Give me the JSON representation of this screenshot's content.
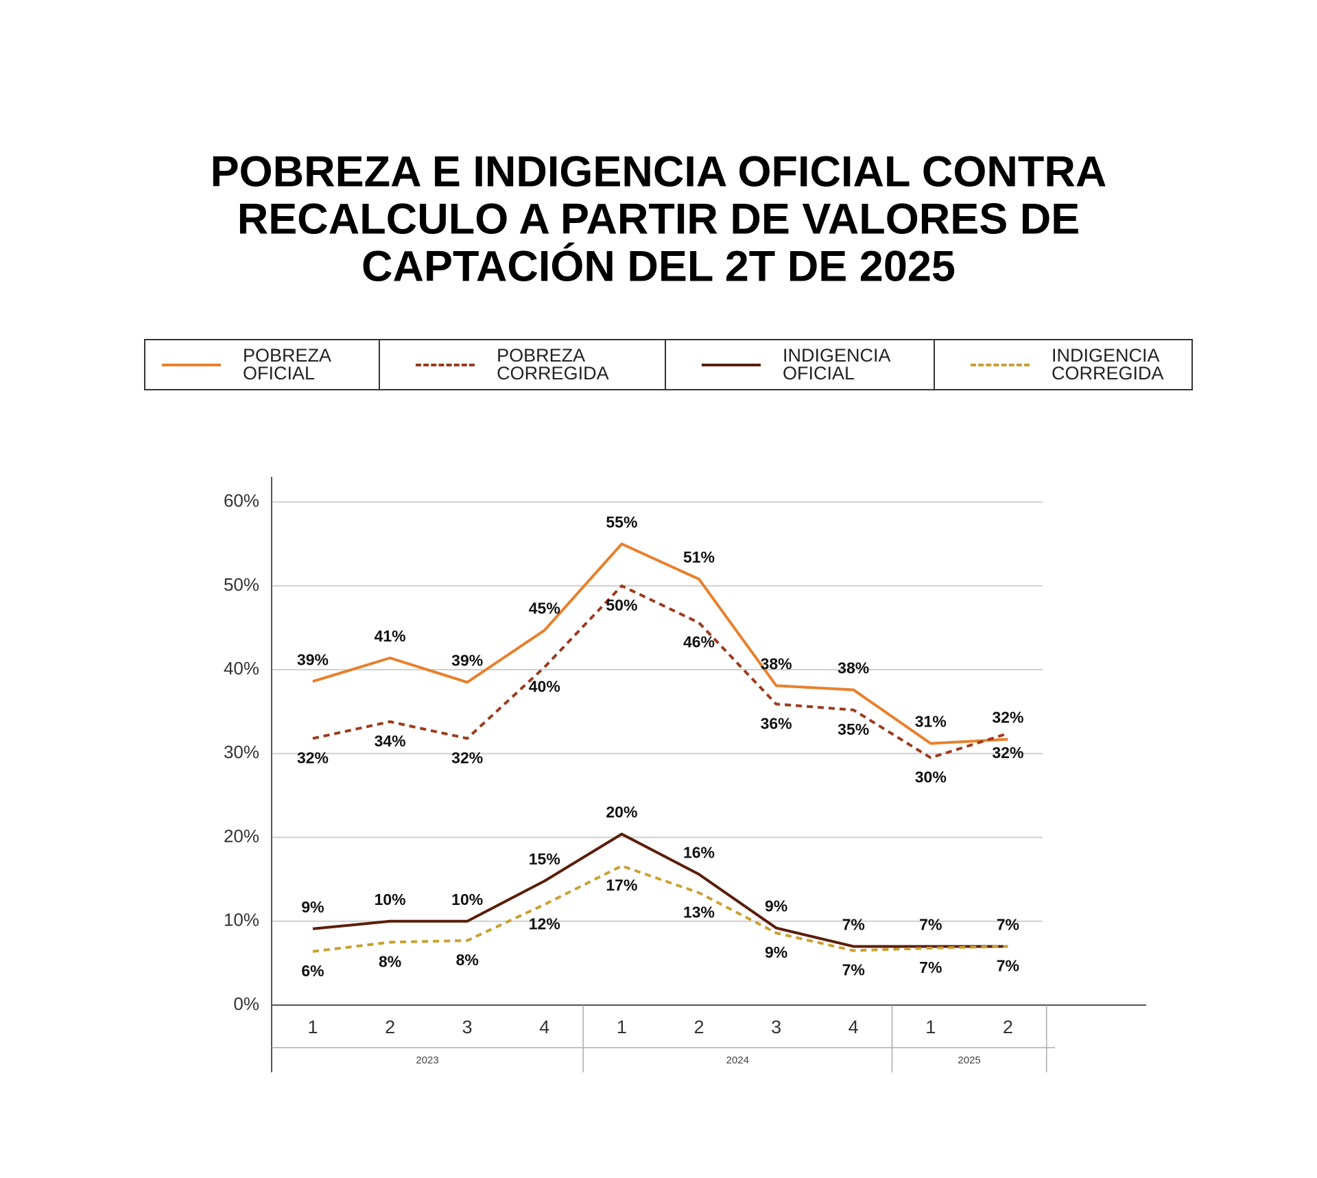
{
  "chart_data": {
    "type": "line",
    "title": [
      "POBREZA E INDIGENCIA OFICIAL CONTRA",
      "RECALCULO A PARTIR DE VALORES DE",
      "CAPTACIÓN DEL 2T DE 2025"
    ],
    "categories": [
      "1",
      "2",
      "3",
      "4",
      "1",
      "2",
      "3",
      "4",
      "1",
      "2"
    ],
    "years": [
      "2023",
      "2024",
      "2025"
    ],
    "ylim": [
      0,
      63
    ],
    "yticks": [
      {
        "value": 0,
        "label": "0%"
      },
      {
        "value": 10,
        "label": "10%"
      },
      {
        "value": 20,
        "label": "20%"
      },
      {
        "value": 30,
        "label": "30%"
      },
      {
        "value": 40,
        "label": "40%"
      },
      {
        "value": 50,
        "label": "50%"
      },
      {
        "value": 60,
        "label": "60%"
      }
    ],
    "grid": true,
    "series": [
      {
        "name": "POBREZA OFICIAL",
        "color": "#e8802c",
        "dashed": false,
        "values": [
          38.6,
          41.4,
          38.5,
          44.7,
          55.0,
          50.8,
          38.1,
          37.6,
          31.2,
          31.7
        ],
        "value_labels": [
          "39%",
          "41%",
          "39%",
          "45%",
          "55%",
          "51%",
          "38%",
          "38%",
          "31%",
          "32%"
        ]
      },
      {
        "name": "POBREZA CORREGIDA",
        "color": "#9c3a1c",
        "dashed": true,
        "values": [
          31.8,
          33.8,
          31.8,
          40.3,
          50.0,
          45.6,
          35.9,
          35.2,
          29.5,
          32.4
        ],
        "value_labels": [
          "32%",
          "34%",
          "32%",
          "40%",
          "50%",
          "46%",
          "36%",
          "35%",
          "30%",
          "32%"
        ]
      },
      {
        "name": "INDIGENCIA OFICIAL",
        "color": "#5a1e0a",
        "dashed": false,
        "values": [
          9.1,
          10.0,
          10.0,
          14.8,
          20.4,
          15.6,
          9.2,
          7.0,
          7.0,
          7.0
        ],
        "value_labels": [
          "9%",
          "10%",
          "10%",
          "15%",
          "20%",
          "16%",
          "9%",
          "7%",
          "7%",
          "7%"
        ]
      },
      {
        "name": "INDIGENCIA CORREGIDA",
        "color": "#c9a032",
        "dashed": true,
        "values": [
          6.4,
          7.5,
          7.7,
          12.0,
          16.6,
          13.4,
          8.6,
          6.5,
          6.8,
          7.0
        ],
        "value_labels": [
          "6%",
          "8%",
          "8%",
          "12%",
          "17%",
          "13%",
          "9%",
          "7%",
          "7%",
          "7%"
        ]
      }
    ]
  }
}
